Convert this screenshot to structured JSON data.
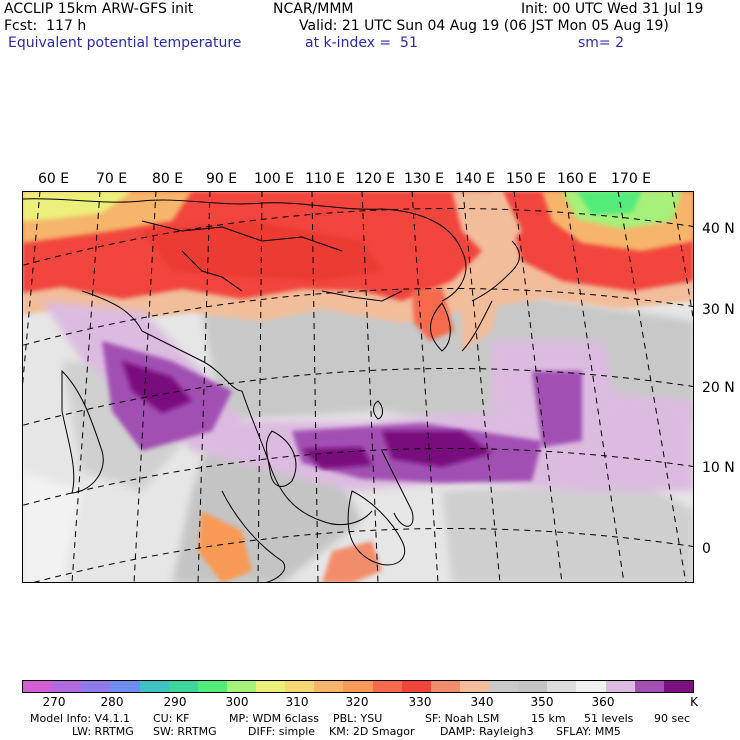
{
  "header": {
    "line1_left": "ACCLIP 15km ARW-GFS init",
    "line1_mid": "NCAR/MMM",
    "line1_right": "Init: 00 UTC Wed 31 Jul 19",
    "line2_left": "Fcst:  117 h",
    "line2_right": "Valid: 21 UTC Sun 04 Aug 19 (06 JST Mon 05 Aug 19)",
    "line3_left": "Equivalent potential temperature",
    "line3_mid": "at k-index =  51",
    "line3_right": "sm= 2"
  },
  "map": {
    "lon_labels": [
      "60 E",
      "70 E",
      "80 E",
      "90 E",
      "100 E",
      "110 E",
      "120 E",
      "130 E",
      "140 E",
      "150 E",
      "160 E",
      "170 E"
    ],
    "lat_labels": [
      "40 N",
      "30 N",
      "20 N",
      "10 N",
      "0"
    ]
  },
  "colorbar": {
    "colors": [
      "#d35fd3",
      "#b26ae0",
      "#8f7ae8",
      "#6d8eee",
      "#3fc2c2",
      "#3ed59a",
      "#52ec7a",
      "#a7f07a",
      "#ecf07a",
      "#f5d773",
      "#f6b56a",
      "#f89a57",
      "#f66a4e",
      "#f1443c",
      "#f28d6c",
      "#f2bd9a",
      "#c9c9c9",
      "#c4c4c4",
      "#dcdcdc",
      "#f0f0f0",
      "#dcbbe0",
      "#a14fb2",
      "#7a117e"
    ],
    "labels": [
      "270",
      "280",
      "290",
      "300",
      "310",
      "320",
      "330",
      "340",
      "350",
      "360"
    ],
    "unit": "K"
  },
  "footer": {
    "line1": [
      "Model Info: V4.1.1",
      "CU: KF",
      "MP: WDM 6class",
      "PBL: YSU",
      "SF: Noah LSM",
      "15 km",
      "51 levels",
      "90 sec"
    ],
    "line2": [
      "LW: RRTMG",
      "SW: RRTMG",
      "DIFF: simple",
      "KM: 2D Smagor",
      "DAMP: Rayleigh3",
      "SFLAY: MM5"
    ]
  }
}
